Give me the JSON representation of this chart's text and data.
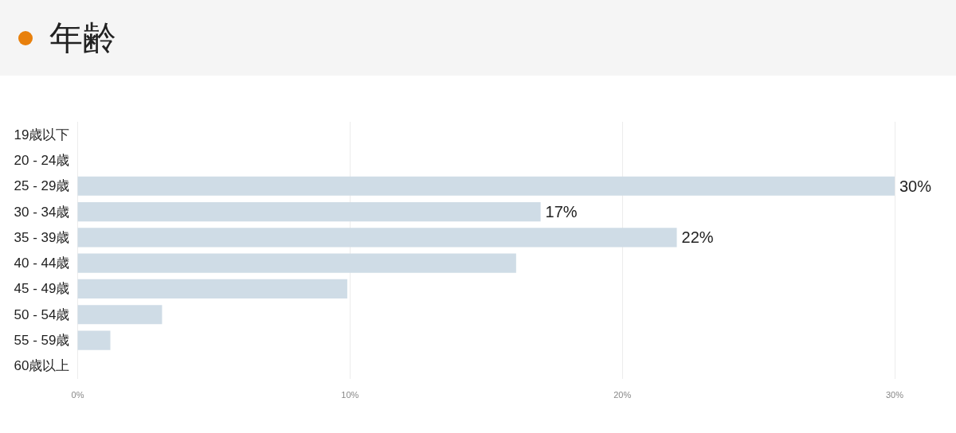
{
  "chart_data": {
    "type": "bar",
    "title": "年齢",
    "orientation": "horizontal",
    "categories": [
      "19歳以下",
      "20 - 24歳",
      "25 - 29歳",
      "30 - 34歳",
      "35 - 39歳",
      "40 - 44歳",
      "45 - 49歳",
      "50 - 54歳",
      "55 - 59歳",
      "60歳以上"
    ],
    "values": [
      0,
      0,
      30,
      17,
      22,
      16.1,
      9.9,
      3.1,
      1.2,
      0
    ],
    "value_labels": [
      null,
      null,
      "30%",
      "17%",
      "22%",
      null,
      null,
      null,
      null,
      null
    ],
    "color": "#cfdce6",
    "xlim": [
      0,
      30
    ],
    "xticks": [
      {
        "value": 0,
        "label": "0%"
      },
      {
        "value": 10,
        "label": "10%"
      },
      {
        "value": 20,
        "label": "20%"
      },
      {
        "value": 30,
        "label": "30%"
      }
    ],
    "grid": "x"
  }
}
